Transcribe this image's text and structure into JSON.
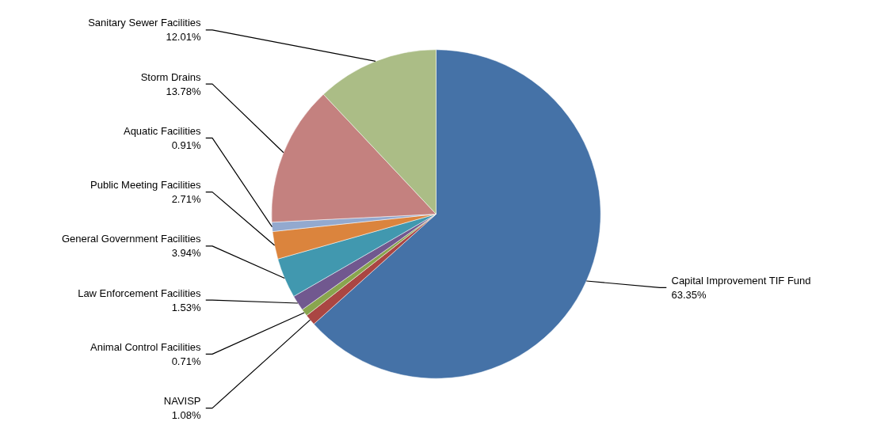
{
  "chart_data": {
    "type": "pie",
    "categories": [
      "Capital Improvement TIF Fund",
      "NAVISP",
      "Animal Control Facilities",
      "Law Enforcement Facilities",
      "General Government Facilities",
      "Public Meeting Facilities",
      "Aquatic Facilities",
      "Storm Drains",
      "Sanitary Sewer Facilities"
    ],
    "values": [
      63.35,
      1.08,
      0.71,
      1.53,
      3.94,
      2.71,
      0.91,
      13.78,
      12.01
    ],
    "value_labels": [
      "63.35%",
      "1.08%",
      "0.71%",
      "1.53%",
      "3.94%",
      "2.71%",
      "0.91%",
      "13.78%",
      "12.01%"
    ],
    "colors": [
      "#4572a7",
      "#aa4643",
      "#89a54e",
      "#71588f",
      "#4198af",
      "#db843d",
      "#93a9cf",
      "#c4817f",
      "#abbd86"
    ]
  }
}
